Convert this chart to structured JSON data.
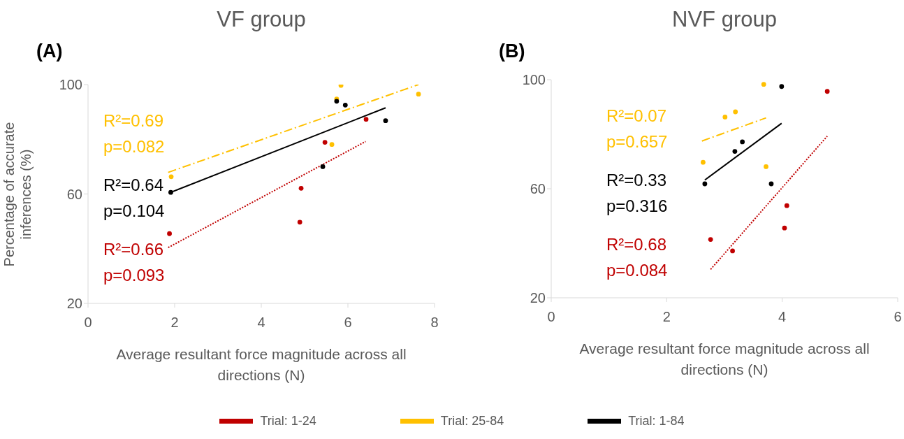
{
  "chart_data": [
    {
      "type": "scatter",
      "title": "VF group",
      "xlabel": "Average resultant force magnitude across all directions (N)",
      "ylabel": "Percentage of accurate inferences (%)",
      "annotations": [
        "(A)",
        "R²=0.69",
        "p=0.082",
        "R²=0.64",
        "p=0.104",
        "R²=0.66",
        "p=0.093"
      ],
      "xlim": [
        0,
        8
      ],
      "xticks": [
        0,
        2,
        4,
        6,
        8
      ],
      "ylim": [
        20,
        100
      ],
      "yticks": [
        20,
        60,
        100
      ],
      "grid": false,
      "series": [
        {
          "color": "#c00000",
          "marker": "circle",
          "x": [
            6.42,
            5.47,
            4.92,
            4.89,
            1.88
          ],
          "values": [
            87.3,
            78.9,
            62.1,
            49.7,
            45.5
          ]
        },
        {
          "color": "#ffc000",
          "marker": "circle",
          "x": [
            5.84,
            7.63,
            5.74,
            5.63,
            1.92
          ],
          "values": [
            99.7,
            96.5,
            94.7,
            78.1,
            66.3
          ]
        },
        {
          "color": "#000000",
          "marker": "circle",
          "x": [
            5.74,
            5.94,
            6.87,
            5.42,
            1.91
          ],
          "values": [
            93.9,
            92.5,
            86.8,
            70.0,
            60.6
          ]
        },
        {
          "type": "line",
          "color": "#c00000",
          "line_style": "dotted",
          "marker": "none",
          "x": [
            1.85,
            6.41
          ],
          "values": [
            40.4,
            79.2
          ]
        },
        {
          "type": "line",
          "color": "#ffc000",
          "line_style": "dashed",
          "marker": "none",
          "x": [
            1.85,
            7.63
          ],
          "values": [
            67.9,
            100
          ]
        },
        {
          "type": "line",
          "color": "#000000",
          "line_style": "solid",
          "marker": "none",
          "x": [
            1.91,
            6.87
          ],
          "values": [
            60.6,
            91.5
          ]
        }
      ]
    },
    {
      "type": "scatter",
      "title": "NVF group",
      "xlabel": "Average resultant force magnitude across all directions (N)",
      "annotations": [
        "(B)",
        "R²=0.07",
        "p=0.657",
        "R²=0.33",
        "p=0.316",
        "R²=0.68",
        "p=0.084"
      ],
      "xlim": [
        0,
        6
      ],
      "xticks": [
        0,
        2,
        4,
        6
      ],
      "ylim": [
        20,
        100
      ],
      "yticks": [
        20,
        60,
        100
      ],
      "grid": false,
      "legend": "bottom",
      "series": [
        {
          "name": "Trial: 1-24",
          "color": "#c00000",
          "marker": "circle",
          "x": [
            4.78,
            4.08,
            4.04,
            2.76,
            3.14
          ],
          "values": [
            95.7,
            53.8,
            45.6,
            41.4,
            37.2
          ]
        },
        {
          "name": "Trial: 25-84",
          "color": "#ffc000",
          "marker": "circle",
          "x": [
            3.68,
            3.19,
            3.01,
            2.63,
            3.72
          ],
          "values": [
            98.3,
            88.2,
            86.3,
            69.7,
            68.1
          ]
        },
        {
          "name": "Trial: 1-84",
          "color": "#000000",
          "marker": "circle",
          "x": [
            3.99,
            3.31,
            3.18,
            2.66,
            3.81
          ],
          "values": [
            97.5,
            77.2,
            73.7,
            61.8,
            61.8
          ]
        },
        {
          "type": "line",
          "color": "#c00000",
          "line_style": "dotted",
          "marker": "none",
          "x": [
            2.76,
            4.78
          ],
          "values": [
            30.4,
            79.3
          ]
        },
        {
          "type": "line",
          "color": "#ffc000",
          "line_style": "dashed",
          "marker": "none",
          "x": [
            2.61,
            3.72
          ],
          "values": [
            77.5,
            86.0
          ]
        },
        {
          "type": "line",
          "color": "#000000",
          "line_style": "solid",
          "marker": "none",
          "x": [
            2.66,
            3.99
          ],
          "values": [
            63.2,
            84.0
          ]
        }
      ]
    }
  ]
}
